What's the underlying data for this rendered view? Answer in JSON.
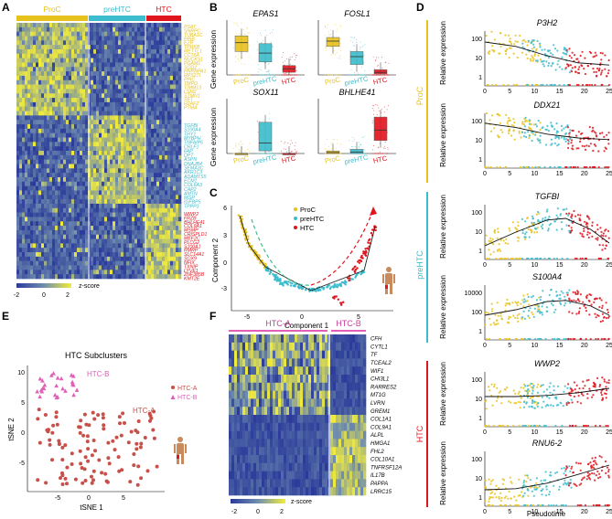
{
  "colors": {
    "proc": "#e8c21c",
    "prehtc": "#3cbccc",
    "htc": "#e0141c",
    "htc_a": "#c8504a",
    "htc_b": "#e060b8",
    "low": "#2b3a9a",
    "high": "#f2ec3a"
  },
  "panel_labels": [
    "A",
    "B",
    "C",
    "D",
    "E",
    "F"
  ],
  "panelA": {
    "groups": [
      "ProC",
      "preHTC",
      "HTC"
    ],
    "proc_genes": [
      "PSAT",
      "SNRPC",
      "TUBA1C",
      "PPIB",
      "EZR",
      "TPRKB",
      "METTL1",
      "CCT6A",
      "NUCKS1",
      "PGAM1",
      "SOD2",
      "HNRNPA1",
      "RPS27L",
      "PPIC",
      "TMPO",
      "TIMM13",
      "LSM2",
      "STMN1",
      "SET",
      "H2AFZ",
      "PTMA"
    ],
    "prehtc_genes": [
      "TGFBI",
      "S100A4",
      "THY1",
      "MYBPH",
      "TNFAIP6",
      "CRLF1",
      "FAP",
      "DPT",
      "ASPN",
      "DNAJB4",
      "SEMA3C",
      "AKR1C3",
      "ADAMTS5",
      "ECM1",
      "COL6A3",
      "CAP2",
      "AMTN",
      "MGP",
      "IGFBP5",
      "TPPP3"
    ],
    "htc_genes": [
      "WWP2",
      "FRZB",
      "BHLHE41",
      "COL9A1",
      "MSMP",
      "CRISPLD1",
      "MEF2C",
      "PLCG2",
      "S100A1",
      "RMRP",
      "SLC14A1",
      "SOX9",
      "NFIX",
      "TXNIP",
      "LYVE1",
      "ZNF385B",
      "KMT2E"
    ],
    "scale_label": "z-score",
    "scale_ticks": [
      "-2",
      "0",
      "2"
    ]
  },
  "panelB": {
    "ylabel": "Gene expression",
    "group_labels": [
      "ProC",
      "preHTC",
      "HTC"
    ],
    "plots": [
      {
        "gene": "EPAS1",
        "stats": [
          [
            0.45,
            0.62,
            0.75
          ],
          [
            0.25,
            0.42,
            0.6
          ],
          [
            0.05,
            0.12,
            0.18
          ]
        ]
      },
      {
        "gene": "FOSL1",
        "stats": [
          [
            0.55,
            0.65,
            0.72
          ],
          [
            0.2,
            0.35,
            0.45
          ],
          [
            0.02,
            0.05,
            0.1
          ]
        ]
      },
      {
        "gene": "SOX11",
        "stats": [
          [
            0,
            0,
            0
          ],
          [
            0.05,
            0.2,
            0.6
          ],
          [
            0,
            0,
            0
          ]
        ]
      },
      {
        "gene": "BHLHE41",
        "stats": [
          [
            0,
            0.02,
            0.05
          ],
          [
            0,
            0.03,
            0.08
          ],
          [
            0.25,
            0.45,
            0.7
          ]
        ]
      }
    ]
  },
  "panelC": {
    "legend": [
      "ProC",
      "preHTC",
      "HTC"
    ],
    "xlabel": "Component 1",
    "ylabel": "Component 2",
    "xticks": [
      "-5",
      "0",
      "5"
    ],
    "yticks": [
      "6",
      "3",
      "0",
      "-3"
    ]
  },
  "panelD": {
    "xlabel": "Pseudotime",
    "ylabel": "Relative expression",
    "xticks": [
      "0",
      "5",
      "10",
      "15",
      "20",
      "25"
    ],
    "sections": [
      "ProC",
      "preHTC",
      "HTC"
    ],
    "plots": [
      {
        "gene": "P3H2",
        "yticks": [
          "100",
          "10",
          "1"
        ],
        "curve": [
          [
            0,
            0.8
          ],
          [
            0.25,
            0.72
          ],
          [
            0.5,
            0.55
          ],
          [
            0.75,
            0.42
          ],
          [
            1,
            0.38
          ]
        ]
      },
      {
        "gene": "DDX21",
        "yticks": [
          "100",
          "10",
          "1"
        ],
        "curve": [
          [
            0,
            0.82
          ],
          [
            0.25,
            0.74
          ],
          [
            0.5,
            0.62
          ],
          [
            0.75,
            0.55
          ],
          [
            1,
            0.52
          ]
        ]
      },
      {
        "gene": "TGFBI",
        "yticks": [
          "100",
          "10",
          "1"
        ],
        "curve": [
          [
            0,
            0.25
          ],
          [
            0.25,
            0.5
          ],
          [
            0.5,
            0.72
          ],
          [
            0.65,
            0.75
          ],
          [
            0.85,
            0.55
          ],
          [
            1,
            0.3
          ]
        ]
      },
      {
        "gene": "S100A4",
        "yticks": [
          "10000",
          "100",
          "1"
        ],
        "curve": [
          [
            0,
            0.45
          ],
          [
            0.25,
            0.55
          ],
          [
            0.5,
            0.7
          ],
          [
            0.65,
            0.72
          ],
          [
            0.85,
            0.62
          ],
          [
            1,
            0.45
          ]
        ]
      },
      {
        "gene": "WWP2",
        "yticks": [
          "100",
          "10",
          "1"
        ],
        "curve": [
          [
            0,
            0.55
          ],
          [
            0.25,
            0.55
          ],
          [
            0.5,
            0.57
          ],
          [
            0.75,
            0.62
          ],
          [
            1,
            0.7
          ]
        ]
      },
      {
        "gene": "RNU6-2",
        "yticks": [
          "100",
          "10",
          "1"
        ],
        "curve": [
          [
            0,
            0.3
          ],
          [
            0.25,
            0.32
          ],
          [
            0.5,
            0.42
          ],
          [
            0.75,
            0.58
          ],
          [
            1,
            0.75
          ]
        ]
      }
    ]
  },
  "panelE": {
    "title": "HTC Subclusters",
    "xlabel": "tSNE 1",
    "ylabel": "tSNE 2",
    "xticks": [
      "-5",
      "0",
      "5"
    ],
    "yticks": [
      "10",
      "5",
      "0",
      "-5"
    ],
    "legend": [
      "HTC-A",
      "HTC-B"
    ],
    "cluster_labels": [
      "HTC-B",
      "HTC-A"
    ]
  },
  "panelF": {
    "groups": [
      "HTC-A",
      "HTC-B"
    ],
    "genes": [
      "CFH",
      "CYTL1",
      "TF",
      "TCEAL2",
      "WIF1",
      "CHI3L1",
      "RARRES2",
      "MT1G",
      "LVRN",
      "GREM1",
      "COL1A1",
      "COL9A1",
      "ALPL",
      "HMGA1",
      "FHL2",
      "COL10A1",
      "TNFRSF12A",
      "IL17B",
      "PAPPA",
      "LRRC15"
    ],
    "scale_label": "z-score",
    "scale_ticks": [
      "-2",
      "0",
      "2"
    ]
  }
}
